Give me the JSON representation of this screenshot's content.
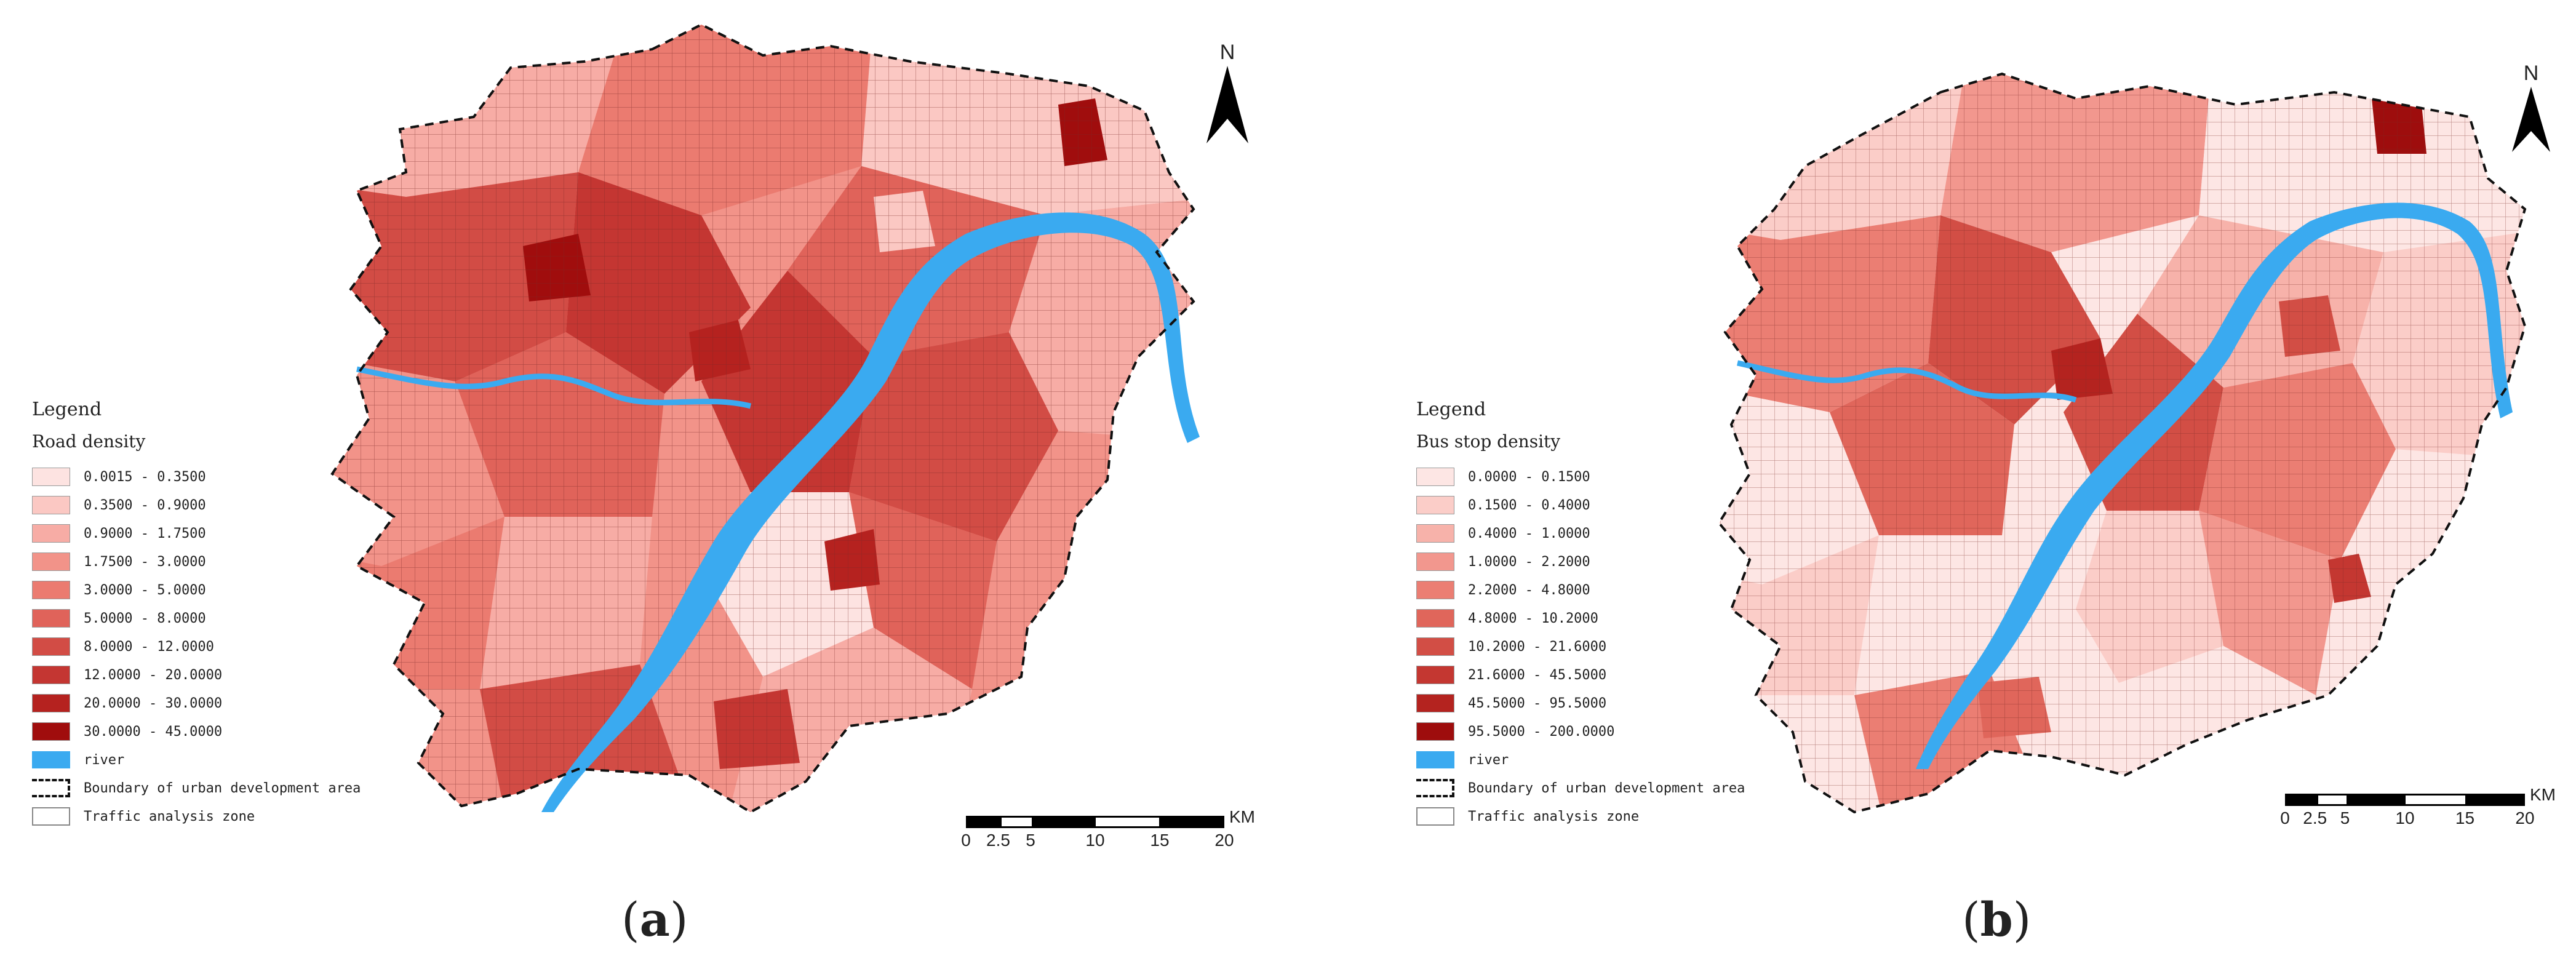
{
  "panels": [
    {
      "caption_letter": "a",
      "legend_title": "Legend",
      "legend_subtitle": "Road density",
      "classes": [
        {
          "label": "0.0015 - 0.3500",
          "color": "#fde3e1"
        },
        {
          "label": "0.3500 - 0.9000",
          "color": "#fbc8c3"
        },
        {
          "label": "0.9000 - 1.7500",
          "color": "#f7aca5"
        },
        {
          "label": "1.7500 - 3.0000",
          "color": "#f29389"
        },
        {
          "label": "3.0000 - 5.0000",
          "color": "#eb7b70"
        },
        {
          "label": "5.0000 - 8.0000",
          "color": "#e0635a"
        },
        {
          "label": "8.0000 - 12.0000",
          "color": "#d24c45"
        },
        {
          "label": "12.0000 - 20.0000",
          "color": "#c43632"
        },
        {
          "label": "20.0000 - 30.0000",
          "color": "#b5221f"
        },
        {
          "label": "30.0000 - 45.0000",
          "color": "#a00d0d"
        }
      ],
      "river_label": "river",
      "river_color": "#3aaaf0",
      "boundary_label": "Boundary of urban development area",
      "taz_label": "Traffic analysis zone",
      "north": "N",
      "scale_ticks": [
        "0",
        "2.5",
        "5",
        "10",
        "15",
        "20"
      ],
      "scale_unit": "KM"
    },
    {
      "caption_letter": "b",
      "legend_title": "Legend",
      "legend_subtitle": "Bus stop density",
      "classes": [
        {
          "label": "0.0000 - 0.1500",
          "color": "#fde6e4"
        },
        {
          "label": "0.1500 - 0.4000",
          "color": "#fbcdc8"
        },
        {
          "label": "0.4000 - 1.0000",
          "color": "#f7b2aa"
        },
        {
          "label": "1.0000 - 2.2000",
          "color": "#f2978e"
        },
        {
          "label": "2.2000 - 4.8000",
          "color": "#eb7e73"
        },
        {
          "label": "4.8000 - 10.2000",
          "color": "#e0665b"
        },
        {
          "label": "10.2000 - 21.6000",
          "color": "#d24e45"
        },
        {
          "label": "21.6000 - 45.5000",
          "color": "#c43731"
        },
        {
          "label": "45.5000 - 95.5000",
          "color": "#b4231f"
        },
        {
          "label": "95.5000 - 200.0000",
          "color": "#9e0d0d"
        }
      ],
      "river_label": "river",
      "river_color": "#3aaaf0",
      "boundary_label": "Boundary of urban development area",
      "taz_label": "Traffic analysis zone",
      "north": "N",
      "scale_ticks": [
        "0",
        "2.5",
        "5",
        "10",
        "15",
        "20"
      ],
      "scale_unit": "KM"
    }
  ]
}
